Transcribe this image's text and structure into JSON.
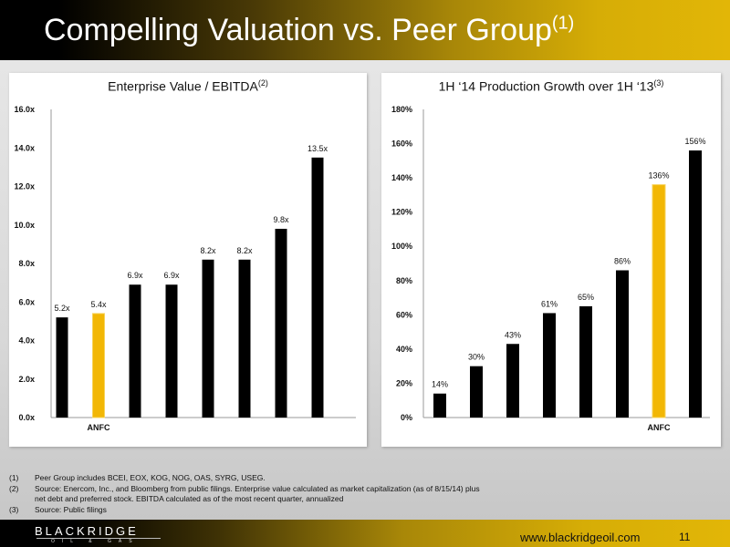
{
  "slide": {
    "title": "Compelling Valuation vs. Peer Group",
    "title_sup": "(1)",
    "footnotes": [
      {
        "num": "(1)",
        "text": "Peer Group includes BCEI, EOX, KOG, NOG, OAS, SYRG, USEG."
      },
      {
        "num": "(2)",
        "text": "Source: Enercom, Inc., and Bloomberg from public  filings. Enterprise value calculated as market capitalization (as of 8/15/14) plus"
      },
      {
        "num": "",
        "text": "net debt and preferred stock. EBITDA calculated as of the most recent quarter, annualized"
      },
      {
        "num": "(3)",
        "text": "Source: Public filings"
      }
    ],
    "logo_main": "BLACKRIDGE",
    "logo_sub": "OIL & GAS",
    "url": "www.blackridgeoil.com",
    "page_number": "11"
  },
  "colors": {
    "bar": "#000000",
    "highlight": "#f2b705",
    "highlight_edge": "#f7d35a"
  },
  "chart_data": [
    {
      "type": "bar",
      "title": "Enterprise Value / EBITDA",
      "title_sup": "(2)",
      "categories": [
        "",
        "ANFC",
        "",
        "",
        "",
        "",
        "",
        ""
      ],
      "values": [
        5.2,
        5.4,
        6.9,
        6.9,
        8.2,
        8.2,
        9.8,
        13.5
      ],
      "data_labels": [
        "5.2x",
        "5.4x",
        "6.9x",
        "6.9x",
        "8.2x",
        "8.2x",
        "9.8x",
        "13.5x"
      ],
      "highlight_index": 1,
      "ylim": [
        0,
        16
      ],
      "yticks": [
        "0.0x",
        "2.0x",
        "4.0x",
        "6.0x",
        "8.0x",
        "10.0x",
        "12.0x",
        "14.0x",
        "16.0x"
      ],
      "grid": false
    },
    {
      "type": "bar",
      "title": "1H ‘14 Production Growth over 1H ‘13",
      "title_sup": "(3)",
      "categories": [
        "",
        "",
        "",
        "",
        "",
        "",
        "ANFC",
        ""
      ],
      "values": [
        14,
        30,
        43,
        61,
        65,
        86,
        136,
        156
      ],
      "data_labels": [
        "14%",
        "30%",
        "43%",
        "61%",
        "65%",
        "86%",
        "136%",
        "156%"
      ],
      "highlight_index": 6,
      "ylim": [
        0,
        180
      ],
      "yticks": [
        "0%",
        "20%",
        "40%",
        "60%",
        "80%",
        "100%",
        "120%",
        "140%",
        "160%",
        "180%"
      ],
      "grid": false
    }
  ]
}
